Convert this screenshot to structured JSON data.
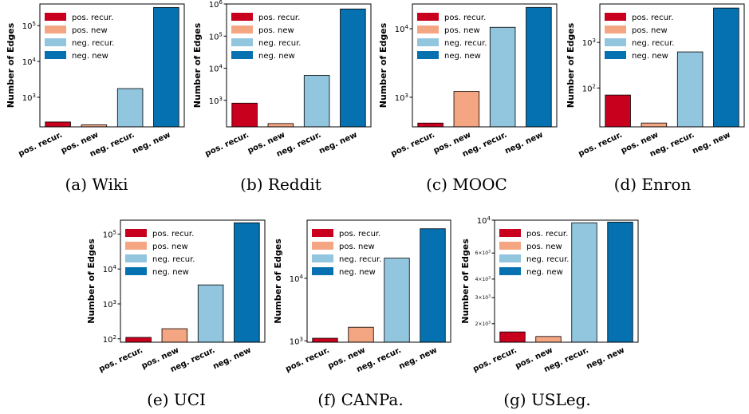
{
  "legend": {
    "position": "upper-left",
    "entries": [
      "pos. recur.",
      "pos. new",
      "neg. recur.",
      "neg. new"
    ]
  },
  "colors": [
    "#c8001e",
    "#f4a582",
    "#92c5de",
    "#0571b0"
  ],
  "chart_data": [
    {
      "type": "bar",
      "caption": "(a) Wiki",
      "ylabel": "Number of Edges",
      "yscale": "log",
      "ylim": [
        150,
        400000
      ],
      "categories": [
        "pos. recur.",
        "pos. new",
        "neg. recur.",
        "neg. new"
      ],
      "values": [
        205,
        170,
        1750,
        320000
      ],
      "yticks": [
        {
          "value": 1000,
          "base": "10",
          "exp": "3"
        },
        {
          "value": 10000,
          "base": "10",
          "exp": "4"
        },
        {
          "value": 100000,
          "base": "10",
          "exp": "5"
        }
      ]
    },
    {
      "type": "bar",
      "caption": "(b) Reddit",
      "ylabel": "Number of Edges",
      "yscale": "log",
      "ylim": [
        150,
        1000000
      ],
      "categories": [
        "pos. recur.",
        "pos. new",
        "neg. recur.",
        "neg. new"
      ],
      "values": [
        820,
        190,
        6000,
        700000
      ],
      "yticks": [
        {
          "value": 1000,
          "base": "10",
          "exp": "3"
        },
        {
          "value": 10000,
          "base": "10",
          "exp": "4"
        },
        {
          "value": 100000,
          "base": "10",
          "exp": "5"
        },
        {
          "value": 1000000,
          "base": "10",
          "exp": "6"
        }
      ]
    },
    {
      "type": "bar",
      "caption": "(c) MOOC",
      "ylabel": "Number of Edges",
      "yscale": "log",
      "ylim": [
        370,
        23000
      ],
      "categories": [
        "pos. recur.",
        "pos. new",
        "neg. recur.",
        "neg. new"
      ],
      "values": [
        420,
        1220,
        10500,
        20500
      ],
      "yticks": [
        {
          "value": 1000,
          "base": "10",
          "exp": "3"
        },
        {
          "value": 10000,
          "base": "10",
          "exp": "4"
        }
      ]
    },
    {
      "type": "bar",
      "caption": "(d) Enron",
      "ylabel": "Number of Edges",
      "yscale": "log",
      "ylim": [
        14,
        7000
      ],
      "categories": [
        "pos. recur.",
        "pos. new",
        "neg. recur.",
        "neg. new"
      ],
      "values": [
        70,
        17,
        620,
        5700
      ],
      "yticks": [
        {
          "value": 100,
          "base": "10",
          "exp": "2"
        },
        {
          "value": 1000,
          "base": "10",
          "exp": "3"
        }
      ]
    },
    {
      "type": "bar",
      "caption": "(e) UCI",
      "ylabel": "Number of Edges",
      "yscale": "log",
      "ylim": [
        80,
        250000
      ],
      "categories": [
        "pos. recur.",
        "pos. new",
        "neg. recur.",
        "neg. new"
      ],
      "values": [
        110,
        195,
        3500,
        210000
      ],
      "yticks": [
        {
          "value": 100,
          "base": "10",
          "exp": "2"
        },
        {
          "value": 1000,
          "base": "10",
          "exp": "3"
        },
        {
          "value": 10000,
          "base": "10",
          "exp": "4"
        },
        {
          "value": 100000,
          "base": "10",
          "exp": "5"
        }
      ]
    },
    {
      "type": "bar",
      "caption": "(f) CANPa.",
      "ylabel": "Number of Edges",
      "yscale": "log",
      "ylim": [
        950,
        85000
      ],
      "categories": [
        "pos. recur.",
        "pos. new",
        "neg. recur.",
        "neg. new"
      ],
      "values": [
        1100,
        1650,
        21000,
        62000
      ],
      "yticks": [
        {
          "value": 1000,
          "base": "10",
          "exp": "3"
        },
        {
          "value": 10000,
          "base": "10",
          "exp": "4"
        }
      ]
    },
    {
      "type": "bar",
      "caption": "(g) USLeg.",
      "ylabel": "Number of Edges",
      "yscale": "log",
      "ylim": [
        1500,
        10000
      ],
      "categories": [
        "pos. recur.",
        "pos. new",
        "neg. recur.",
        "neg. new"
      ],
      "values": [
        1760,
        1640,
        9600,
        9700
      ],
      "yticks": [
        {
          "value": 10000,
          "base": "10",
          "exp": "4"
        },
        {
          "value": 6000,
          "base": "6×10",
          "exp": "3",
          "minor": true
        },
        {
          "value": 4000,
          "base": "4×10",
          "exp": "3",
          "minor": true
        },
        {
          "value": 3000,
          "base": "3×10",
          "exp": "3",
          "minor": true
        },
        {
          "value": 2000,
          "base": "2×10",
          "exp": "3",
          "minor": true
        }
      ]
    }
  ]
}
